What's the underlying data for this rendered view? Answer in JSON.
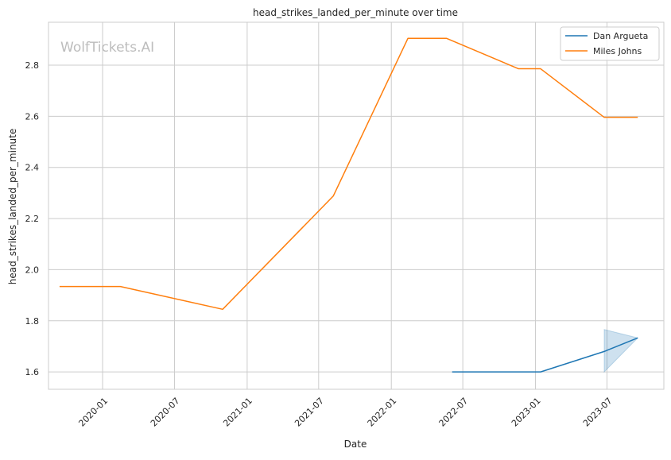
{
  "chart_data": {
    "type": "line",
    "title": "head_strikes_landed_per_minute over time",
    "xlabel": "Date",
    "ylabel": "head_strikes_landed_per_minute",
    "watermark": "WolfTickets.AI",
    "x_ticks": [
      "2020-01",
      "2020-07",
      "2021-01",
      "2021-07",
      "2022-01",
      "2022-07",
      "2023-01",
      "2023-07"
    ],
    "y_ticks": [
      1.6,
      1.8,
      2.0,
      2.2,
      2.4,
      2.6,
      2.8
    ],
    "xlim": [
      "2019-08-17",
      "2023-11-22"
    ],
    "ylim": [
      1.532,
      2.968
    ],
    "grid": true,
    "legend_position": "top-right",
    "series": [
      {
        "name": "Dan Argueta",
        "color": "#1f77b4",
        "points": [
          {
            "x": "2022-06-04",
            "y": 1.6
          },
          {
            "x": "2023-01-14",
            "y": 1.6
          },
          {
            "x": "2023-06-24",
            "y": 1.68
          },
          {
            "x": "2023-09-17",
            "y": 1.733
          }
        ],
        "band": {
          "x": [
            "2023-06-24",
            "2023-09-17"
          ],
          "lower": [
            1.6,
            1.733
          ],
          "upper": [
            1.766,
            1.733
          ]
        }
      },
      {
        "name": "Miles Johns",
        "color": "#ff7f0e",
        "points": [
          {
            "x": "2019-09-14",
            "y": 1.934
          },
          {
            "x": "2020-02-15",
            "y": 1.934
          },
          {
            "x": "2020-10-31",
            "y": 1.845
          },
          {
            "x": "2021-08-07",
            "y": 2.288
          },
          {
            "x": "2022-02-12",
            "y": 2.905
          },
          {
            "x": "2022-05-21",
            "y": 2.905
          },
          {
            "x": "2022-11-19",
            "y": 2.786
          },
          {
            "x": "2023-01-14",
            "y": 2.786
          },
          {
            "x": "2023-06-24",
            "y": 2.596
          },
          {
            "x": "2023-09-17",
            "y": 2.596
          }
        ]
      }
    ]
  }
}
